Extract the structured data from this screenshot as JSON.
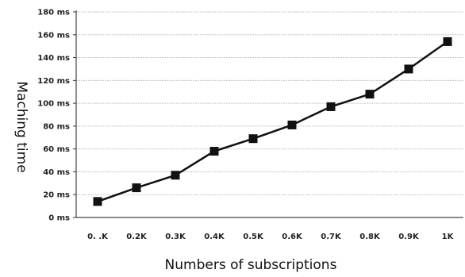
{
  "chart_data": {
    "type": "line",
    "title": "",
    "xlabel": "Numbers of subscriptions",
    "ylabel": "Maching time",
    "categories": [
      "0. .K",
      "0.2K",
      "0.3K",
      "0.4K",
      "0.5K",
      "0.6K",
      "0.7K",
      "0.8K",
      "0.9K",
      "1K"
    ],
    "series": [
      {
        "values": [
          14,
          26,
          37,
          58,
          69,
          81,
          97,
          108,
          130,
          154
        ]
      }
    ],
    "y_ticks": [
      "0 ms",
      "20 ms",
      "40 ms",
      "60 ms",
      "80 ms",
      "100 ms",
      "120 ms",
      "140 ms",
      "160 ms",
      "180 ms"
    ],
    "ylim": [
      0,
      180
    ],
    "y_unit": "ms",
    "grid": true,
    "line_color": "#111111",
    "marker": "square",
    "grid_color": "#c8c8c8"
  }
}
